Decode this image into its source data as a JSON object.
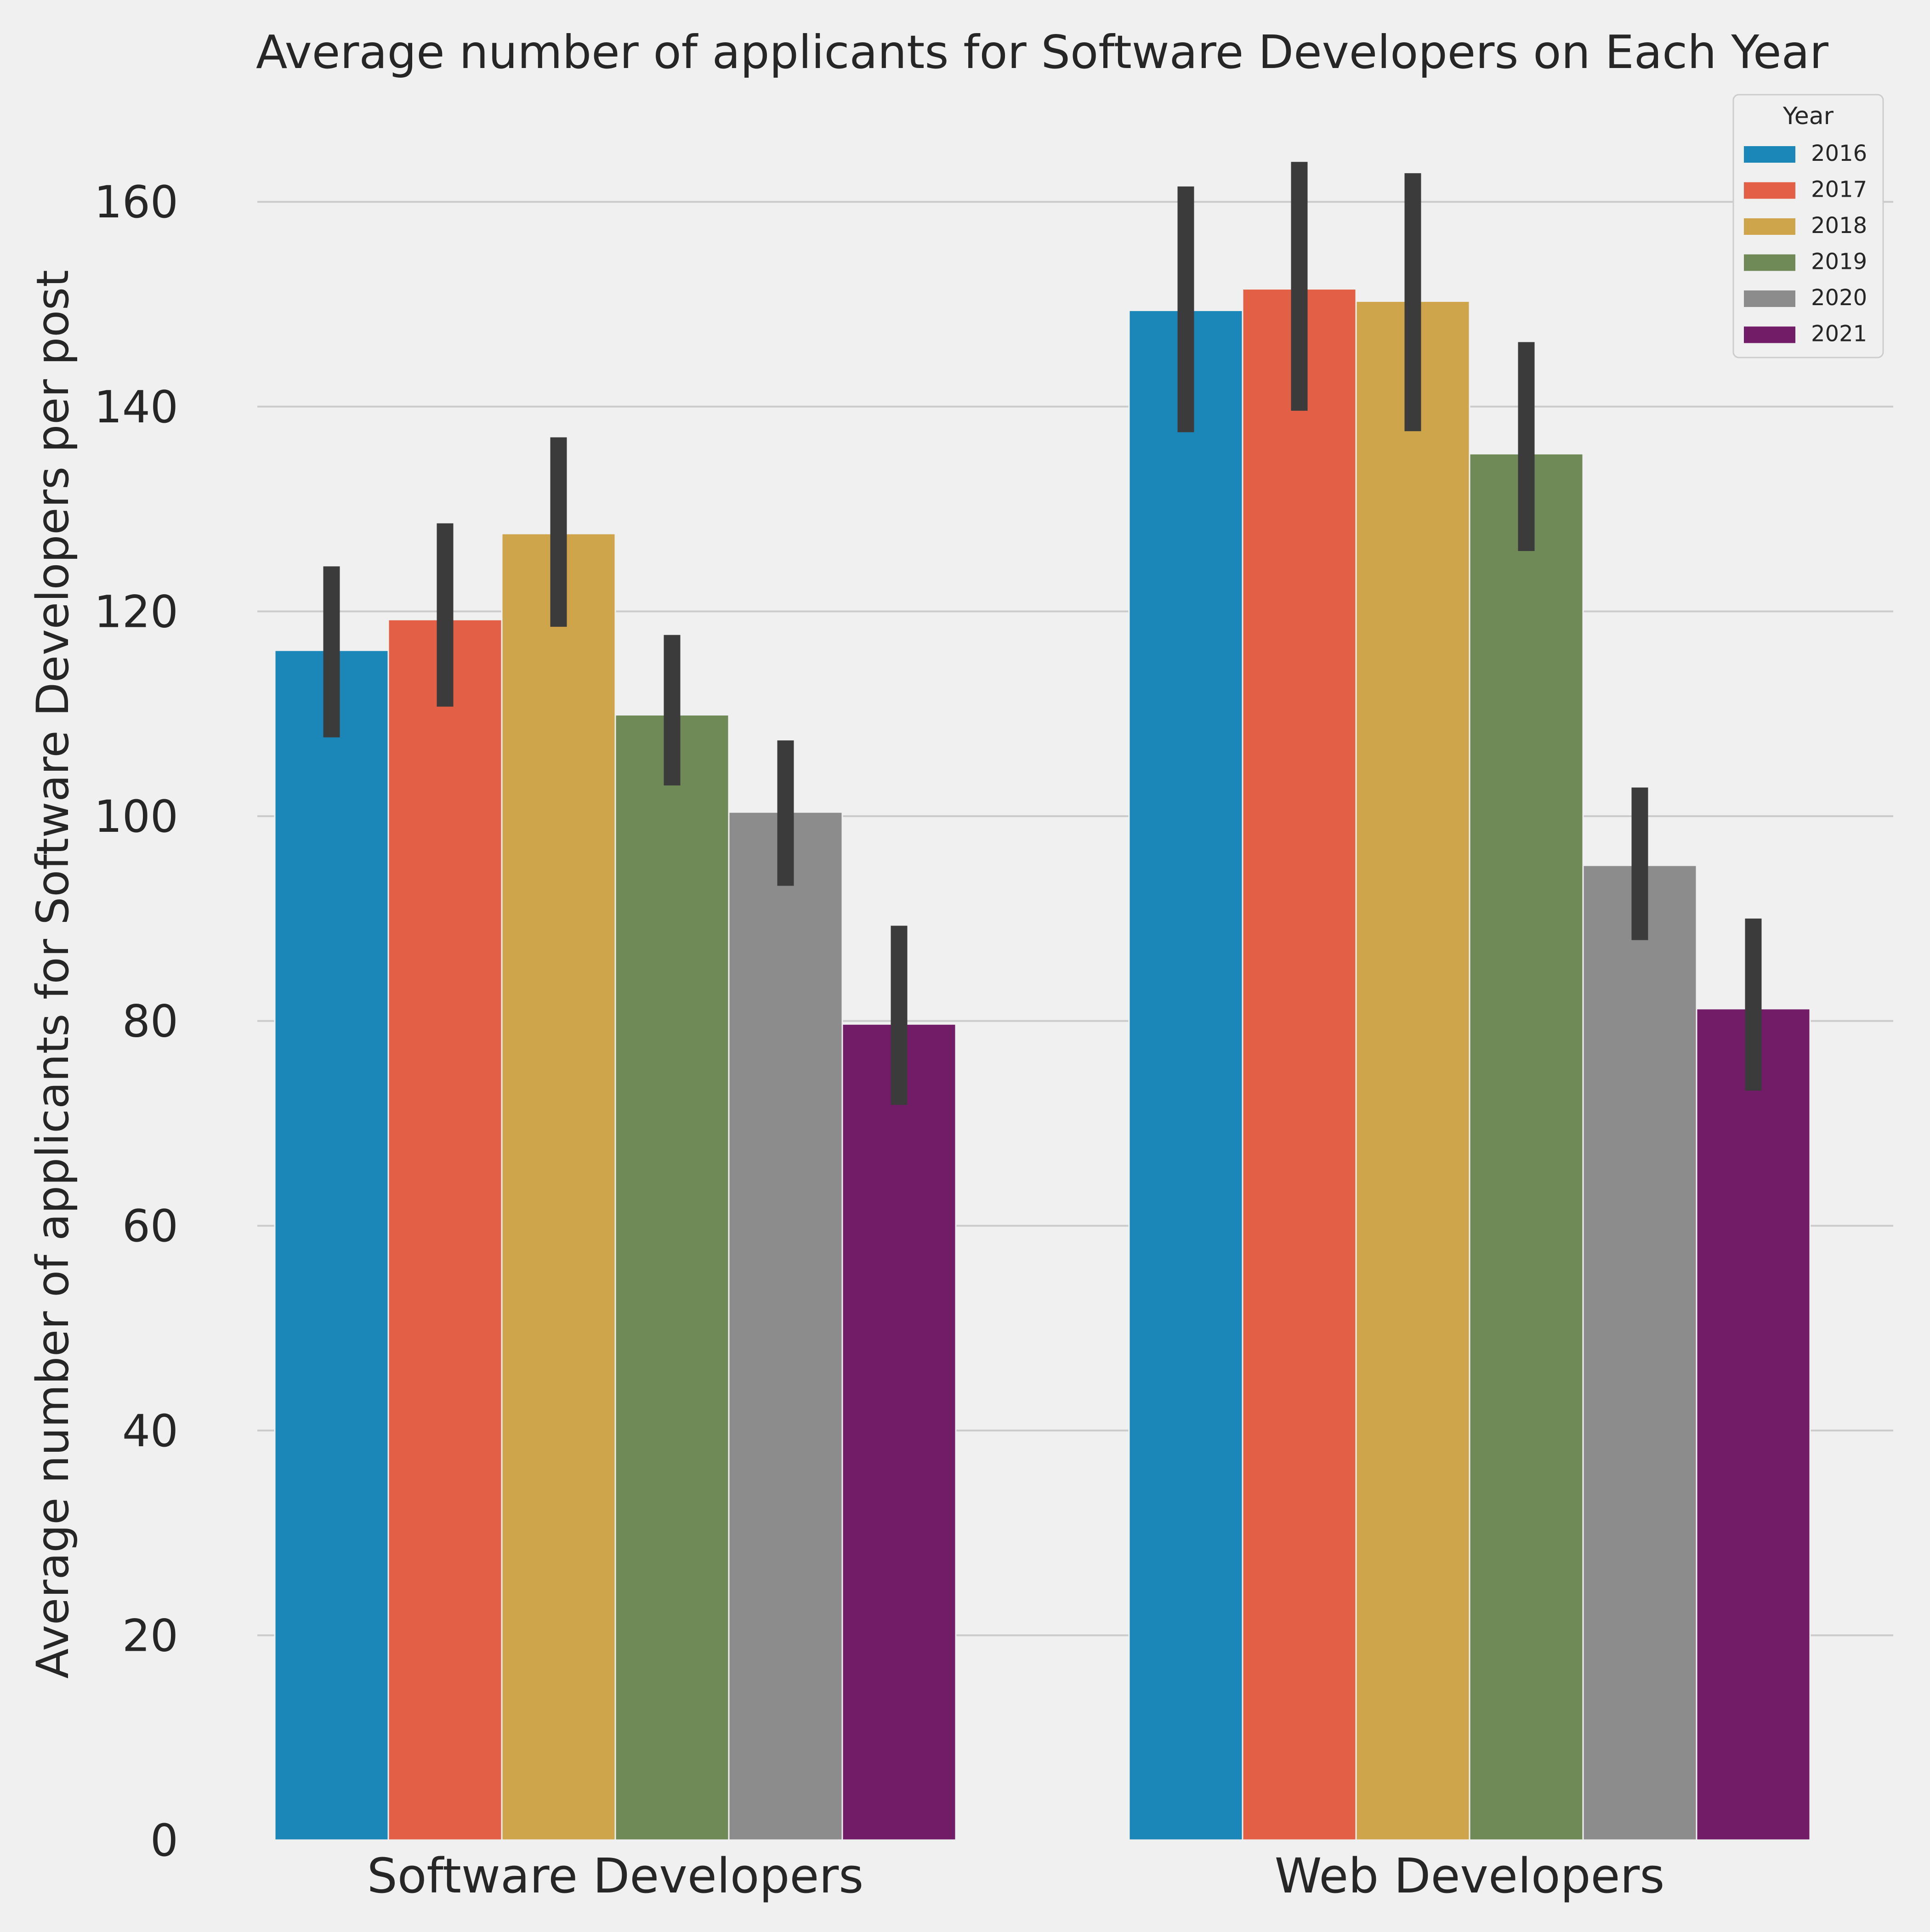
{
  "chart_data": {
    "type": "bar",
    "title": "Average number of applicants for Software Developers on Each Year",
    "xlabel": "",
    "ylabel": "Average number of applicants for Software Developers per post",
    "categories": [
      "Software Developers",
      "Web Developers"
    ],
    "ylim": [
      0,
      170
    ],
    "yticks": [
      "0",
      "20",
      "40",
      "60",
      "80",
      "100",
      "120",
      "140",
      "160"
    ],
    "grid": "horizontal",
    "legend": {
      "title": "Year",
      "placement": "top-right"
    },
    "series": [
      {
        "name": "2016",
        "color": "#1b87b9",
        "values": [
          116.2,
          149.4
        ],
        "errors": [
          [
            107.7,
            124.4
          ],
          [
            137.5,
            161.5
          ]
        ]
      },
      {
        "name": "2017",
        "color": "#e35f46",
        "values": [
          119.2,
          151.5
        ],
        "errors": [
          [
            110.7,
            128.6
          ],
          [
            139.6,
            163.9
          ]
        ]
      },
      {
        "name": "2018",
        "color": "#cfa54c",
        "values": [
          127.6,
          150.3
        ],
        "errors": [
          [
            118.5,
            137.0
          ],
          [
            137.6,
            162.8
          ]
        ]
      },
      {
        "name": "2019",
        "color": "#6f8a57",
        "values": [
          109.9,
          135.4
        ],
        "errors": [
          [
            103.0,
            117.7
          ],
          [
            125.9,
            146.3
          ]
        ]
      },
      {
        "name": "2020",
        "color": "#8c8c8c",
        "values": [
          100.4,
          95.2
        ],
        "errors": [
          [
            93.2,
            107.4
          ],
          [
            87.9,
            102.8
          ]
        ]
      },
      {
        "name": "2021",
        "color": "#721c68",
        "values": [
          79.7,
          81.2
        ],
        "errors": [
          [
            71.8,
            89.3
          ],
          [
            73.2,
            90.0
          ]
        ]
      }
    ],
    "colors": {
      "background": "#f0f0f0",
      "grid": "#cbcbcb",
      "errorbar": "#3b3b3b",
      "text": "#262626"
    }
  }
}
